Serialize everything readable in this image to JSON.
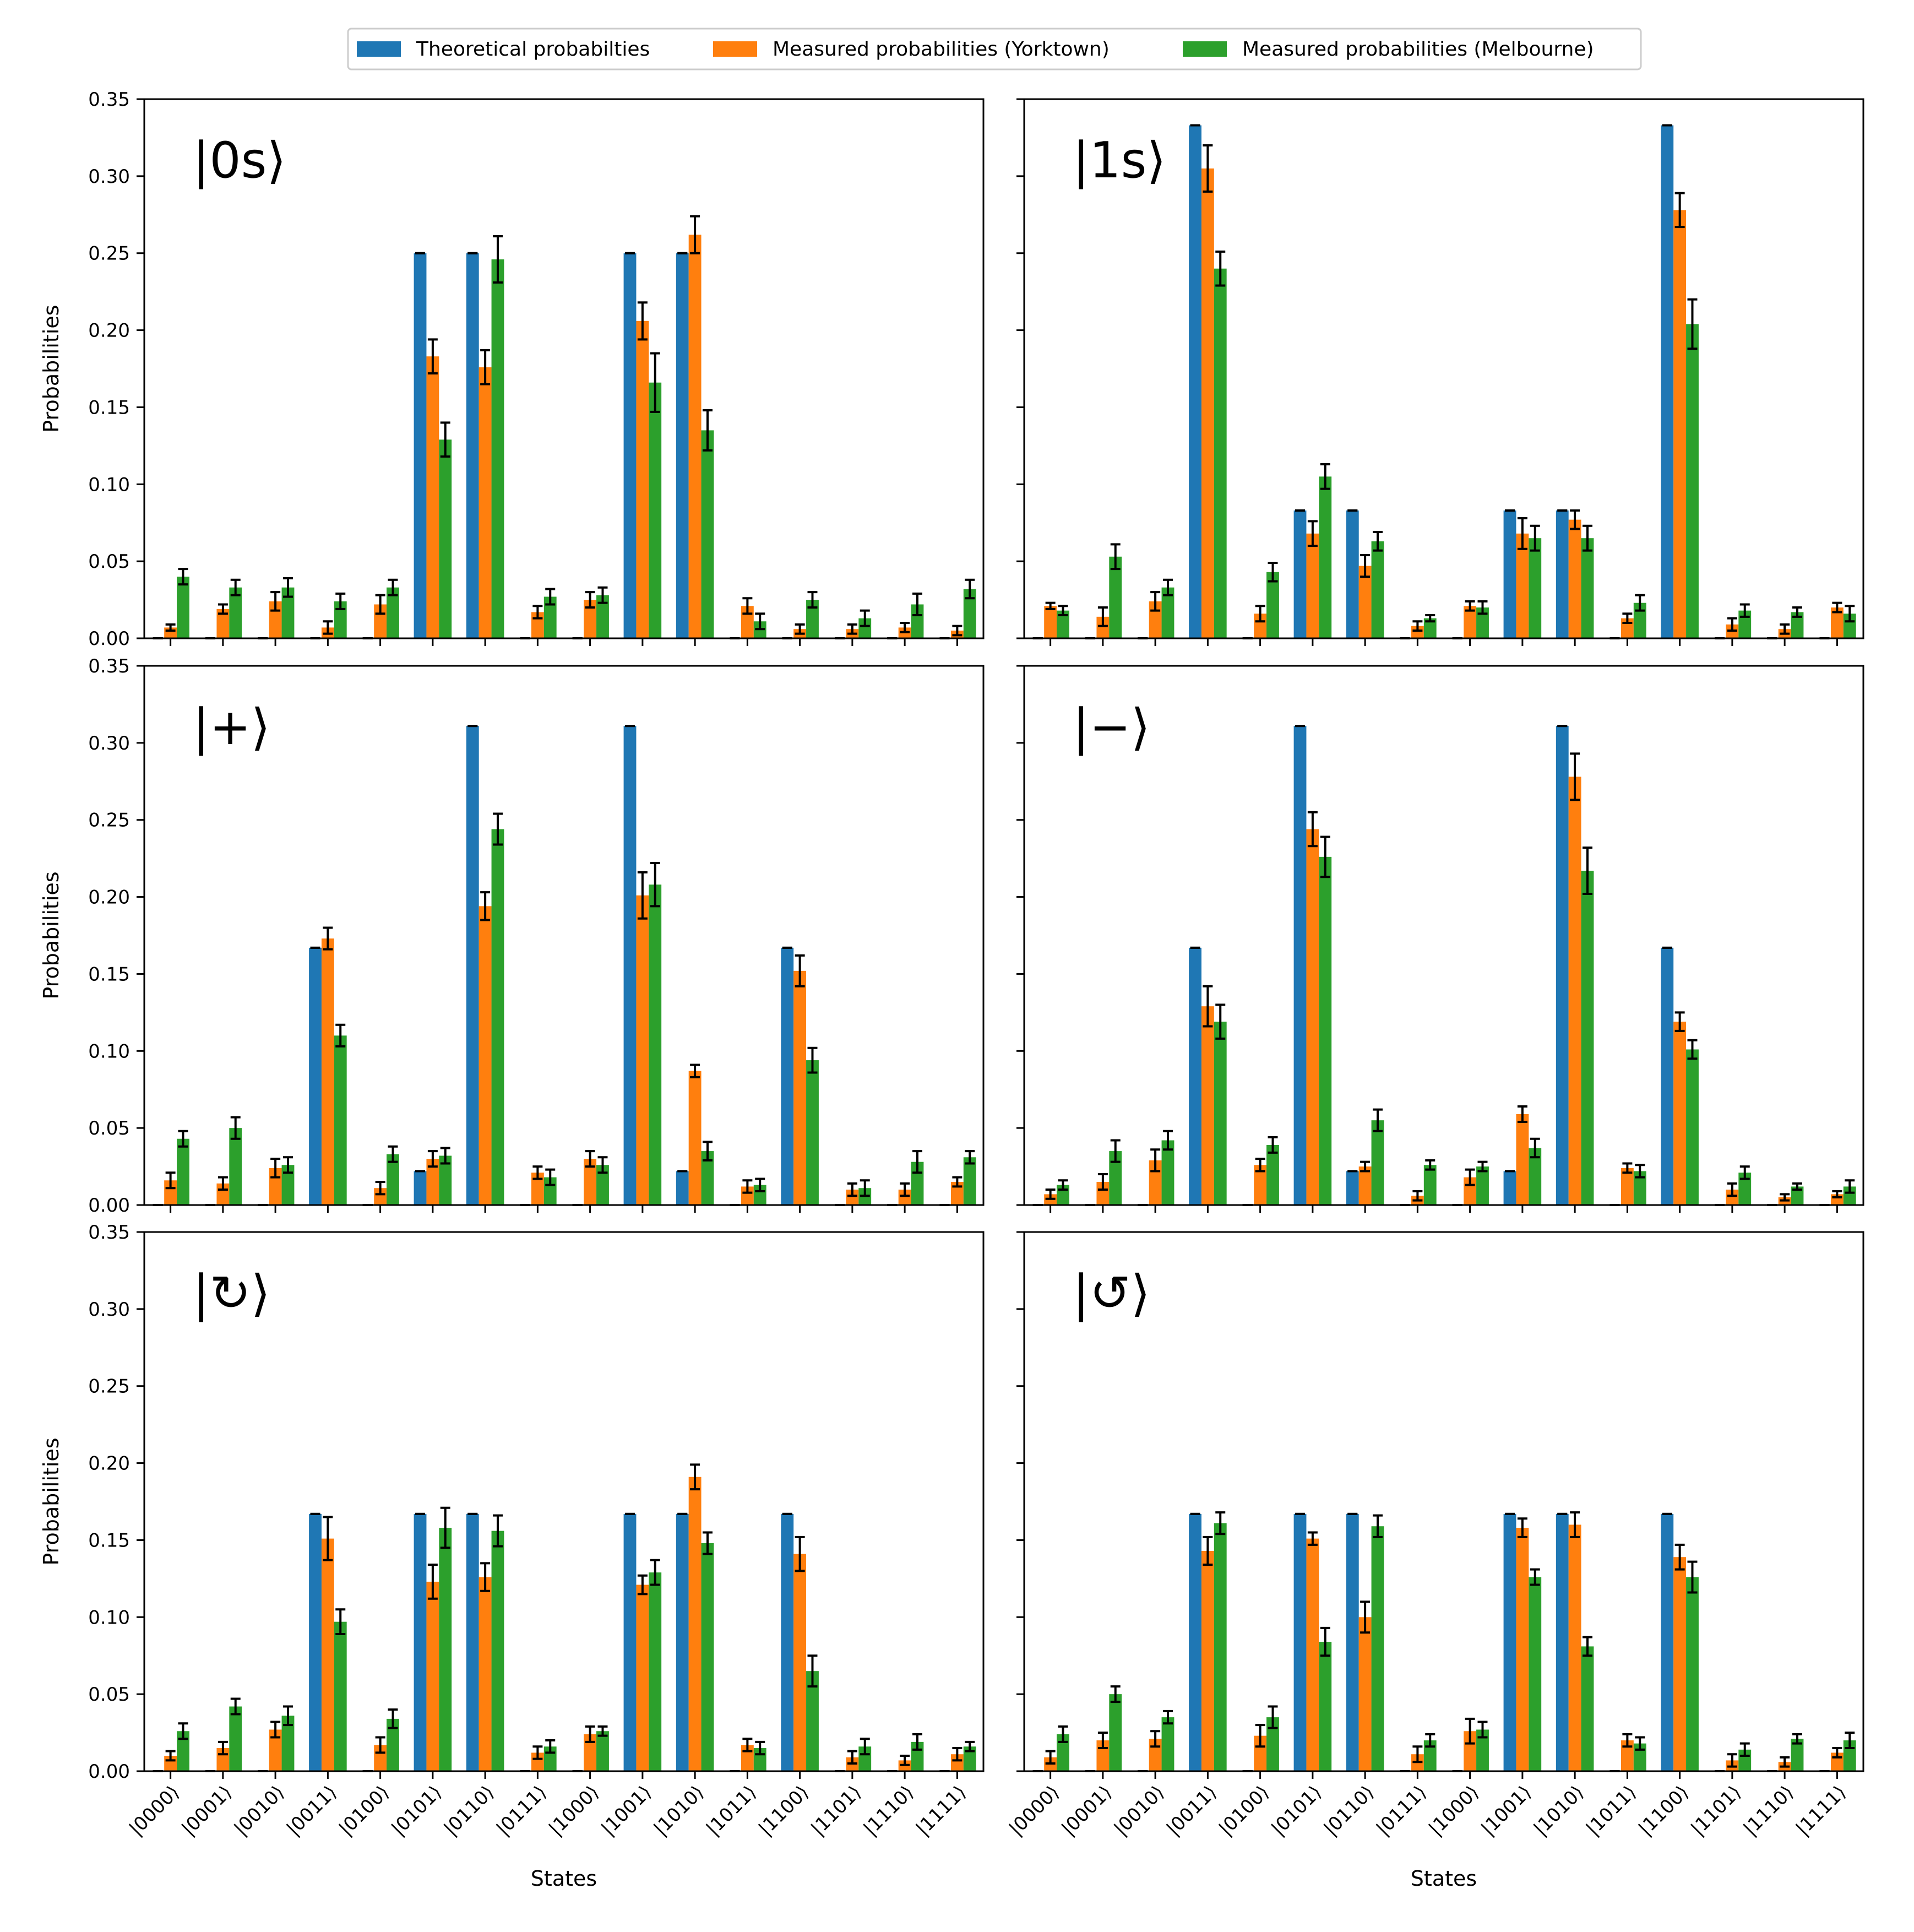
{
  "chart_data": {
    "type": "bar",
    "layout": "3x2 grid of grouped bar charts with error bars",
    "categories": [
      "|0000⟩",
      "|0001⟩",
      "|0010⟩",
      "|0011⟩",
      "|0100⟩",
      "|0101⟩",
      "|0110⟩",
      "|0111⟩",
      "|1000⟩",
      "|1001⟩",
      "|1010⟩",
      "|1011⟩",
      "|1100⟩",
      "|1101⟩",
      "|1110⟩",
      "|1111⟩"
    ],
    "xlabel": "States",
    "ylabel": "Probabilities",
    "ylim": [
      0,
      0.35
    ],
    "yticks": [
      "0.00",
      "0.05",
      "0.10",
      "0.15",
      "0.20",
      "0.25",
      "0.30",
      "0.35"
    ],
    "legend": {
      "placement": "top-center",
      "entries": [
        "Theoretical probabilties",
        "Measured probabilities (Yorktown)",
        "Measured probabilities (Melbourne)"
      ]
    },
    "colors": {
      "theoretical": "#1f77b4",
      "yorktown": "#ff7f0e",
      "melbourne": "#2ca02c",
      "error": "#000000"
    },
    "panels": [
      {
        "label": "|0s⟩",
        "series": [
          {
            "name": "Theoretical probabilties",
            "values": [
              0,
              0,
              0,
              0,
              0,
              0.25,
              0.25,
              0,
              0,
              0.25,
              0.25,
              0,
              0,
              0,
              0,
              0
            ]
          },
          {
            "name": "Measured probabilities (Yorktown)",
            "values": [
              0.007,
              0.019,
              0.024,
              0.007,
              0.022,
              0.183,
              0.176,
              0.017,
              0.025,
              0.206,
              0.262,
              0.021,
              0.006,
              0.006,
              0.007,
              0.005
            ],
            "errors": [
              0.002,
              0.003,
              0.006,
              0.004,
              0.006,
              0.011,
              0.011,
              0.004,
              0.005,
              0.012,
              0.012,
              0.005,
              0.003,
              0.003,
              0.003,
              0.003
            ]
          },
          {
            "name": "Measured probabilities (Melbourne)",
            "values": [
              0.04,
              0.033,
              0.033,
              0.024,
              0.033,
              0.129,
              0.246,
              0.027,
              0.028,
              0.166,
              0.135,
              0.011,
              0.025,
              0.013,
              0.022,
              0.032
            ],
            "errors": [
              0.005,
              0.005,
              0.006,
              0.005,
              0.005,
              0.011,
              0.015,
              0.005,
              0.005,
              0.019,
              0.013,
              0.005,
              0.005,
              0.005,
              0.007,
              0.006
            ]
          }
        ]
      },
      {
        "label": "|1s⟩",
        "series": [
          {
            "name": "Theoretical probabilties",
            "values": [
              0,
              0,
              0,
              0.333,
              0,
              0.083,
              0.083,
              0,
              0,
              0.083,
              0.083,
              0,
              0.333,
              0,
              0,
              0
            ]
          },
          {
            "name": "Measured probabilities (Yorktown)",
            "values": [
              0.021,
              0.014,
              0.024,
              0.305,
              0.016,
              0.068,
              0.047,
              0.008,
              0.021,
              0.068,
              0.077,
              0.013,
              0.278,
              0.009,
              0.006,
              0.02
            ],
            "errors": [
              0.002,
              0.006,
              0.006,
              0.015,
              0.005,
              0.008,
              0.007,
              0.003,
              0.003,
              0.01,
              0.006,
              0.003,
              0.011,
              0.004,
              0.003,
              0.003
            ]
          },
          {
            "name": "Measured probabilities (Melbourne)",
            "values": [
              0.018,
              0.053,
              0.033,
              0.24,
              0.043,
              0.105,
              0.063,
              0.013,
              0.02,
              0.065,
              0.065,
              0.023,
              0.204,
              0.018,
              0.017,
              0.016
            ],
            "errors": [
              0.003,
              0.008,
              0.005,
              0.011,
              0.006,
              0.008,
              0.006,
              0.002,
              0.004,
              0.008,
              0.008,
              0.005,
              0.016,
              0.004,
              0.003,
              0.005
            ]
          }
        ]
      },
      {
        "label": "|+⟩",
        "series": [
          {
            "name": "Theoretical probabilties",
            "values": [
              0,
              0,
              0,
              0.167,
              0,
              0.022,
              0.311,
              0,
              0,
              0.311,
              0.022,
              0,
              0.167,
              0,
              0,
              0
            ]
          },
          {
            "name": "Measured probabilities (Yorktown)",
            "values": [
              0.016,
              0.014,
              0.024,
              0.173,
              0.011,
              0.03,
              0.194,
              0.021,
              0.03,
              0.201,
              0.087,
              0.012,
              0.152,
              0.01,
              0.01,
              0.015
            ],
            "errors": [
              0.005,
              0.004,
              0.006,
              0.007,
              0.004,
              0.005,
              0.009,
              0.004,
              0.005,
              0.015,
              0.004,
              0.004,
              0.01,
              0.004,
              0.004,
              0.003
            ]
          },
          {
            "name": "Measured probabilities (Melbourne)",
            "values": [
              0.043,
              0.05,
              0.026,
              0.11,
              0.033,
              0.032,
              0.244,
              0.018,
              0.026,
              0.208,
              0.035,
              0.013,
              0.094,
              0.011,
              0.028,
              0.031
            ],
            "errors": [
              0.005,
              0.007,
              0.005,
              0.007,
              0.005,
              0.005,
              0.01,
              0.005,
              0.005,
              0.014,
              0.006,
              0.004,
              0.008,
              0.005,
              0.007,
              0.004
            ]
          }
        ]
      },
      {
        "label": "|−⟩",
        "series": [
          {
            "name": "Theoretical probabilties",
            "values": [
              0,
              0,
              0,
              0.167,
              0,
              0.311,
              0.022,
              0,
              0,
              0.022,
              0.311,
              0,
              0.167,
              0,
              0,
              0
            ]
          },
          {
            "name": "Measured probabilities (Yorktown)",
            "values": [
              0.007,
              0.015,
              0.029,
              0.129,
              0.026,
              0.244,
              0.025,
              0.006,
              0.018,
              0.059,
              0.278,
              0.024,
              0.119,
              0.01,
              0.005,
              0.007
            ],
            "errors": [
              0.003,
              0.005,
              0.007,
              0.013,
              0.004,
              0.011,
              0.003,
              0.003,
              0.005,
              0.005,
              0.015,
              0.003,
              0.006,
              0.004,
              0.002,
              0.002
            ]
          },
          {
            "name": "Measured probabilities (Melbourne)",
            "values": [
              0.013,
              0.035,
              0.042,
              0.119,
              0.039,
              0.226,
              0.055,
              0.026,
              0.025,
              0.037,
              0.217,
              0.022,
              0.101,
              0.021,
              0.012,
              0.012
            ],
            "errors": [
              0.003,
              0.007,
              0.006,
              0.011,
              0.005,
              0.013,
              0.007,
              0.003,
              0.003,
              0.006,
              0.015,
              0.004,
              0.006,
              0.004,
              0.002,
              0.004
            ]
          }
        ]
      },
      {
        "label": "|↻⟩",
        "series": [
          {
            "name": "Theoretical probabilties",
            "values": [
              0,
              0,
              0,
              0.167,
              0,
              0.167,
              0.167,
              0,
              0,
              0.167,
              0.167,
              0,
              0.167,
              0,
              0,
              0
            ]
          },
          {
            "name": "Measured probabilities (Yorktown)",
            "values": [
              0.01,
              0.015,
              0.027,
              0.151,
              0.017,
              0.123,
              0.126,
              0.012,
              0.024,
              0.121,
              0.191,
              0.017,
              0.141,
              0.009,
              0.007,
              0.011
            ],
            "errors": [
              0.003,
              0.004,
              0.005,
              0.014,
              0.005,
              0.011,
              0.009,
              0.004,
              0.005,
              0.006,
              0.008,
              0.004,
              0.011,
              0.004,
              0.003,
              0.004
            ]
          },
          {
            "name": "Measured probabilities (Melbourne)",
            "values": [
              0.026,
              0.042,
              0.036,
              0.097,
              0.034,
              0.158,
              0.156,
              0.016,
              0.026,
              0.129,
              0.148,
              0.015,
              0.065,
              0.016,
              0.019,
              0.016
            ],
            "errors": [
              0.005,
              0.005,
              0.006,
              0.008,
              0.006,
              0.013,
              0.01,
              0.004,
              0.003,
              0.008,
              0.007,
              0.004,
              0.01,
              0.005,
              0.005,
              0.003
            ]
          }
        ]
      },
      {
        "label": "|↺⟩",
        "series": [
          {
            "name": "Theoretical probabilties",
            "values": [
              0,
              0,
              0,
              0.167,
              0,
              0.167,
              0.167,
              0,
              0,
              0.167,
              0.167,
              0,
              0.167,
              0,
              0,
              0
            ]
          },
          {
            "name": "Measured probabilities (Yorktown)",
            "values": [
              0.009,
              0.02,
              0.021,
              0.143,
              0.023,
              0.151,
              0.1,
              0.011,
              0.026,
              0.158,
              0.16,
              0.02,
              0.139,
              0.007,
              0.006,
              0.012
            ],
            "errors": [
              0.004,
              0.005,
              0.005,
              0.009,
              0.007,
              0.004,
              0.01,
              0.005,
              0.008,
              0.006,
              0.008,
              0.004,
              0.008,
              0.004,
              0.003,
              0.003
            ]
          },
          {
            "name": "Measured probabilities (Melbourne)",
            "values": [
              0.024,
              0.05,
              0.035,
              0.161,
              0.035,
              0.084,
              0.159,
              0.02,
              0.027,
              0.126,
              0.081,
              0.018,
              0.126,
              0.014,
              0.021,
              0.02
            ],
            "errors": [
              0.005,
              0.005,
              0.004,
              0.007,
              0.007,
              0.009,
              0.007,
              0.004,
              0.005,
              0.005,
              0.006,
              0.004,
              0.01,
              0.004,
              0.003,
              0.005
            ]
          }
        ]
      }
    ]
  }
}
